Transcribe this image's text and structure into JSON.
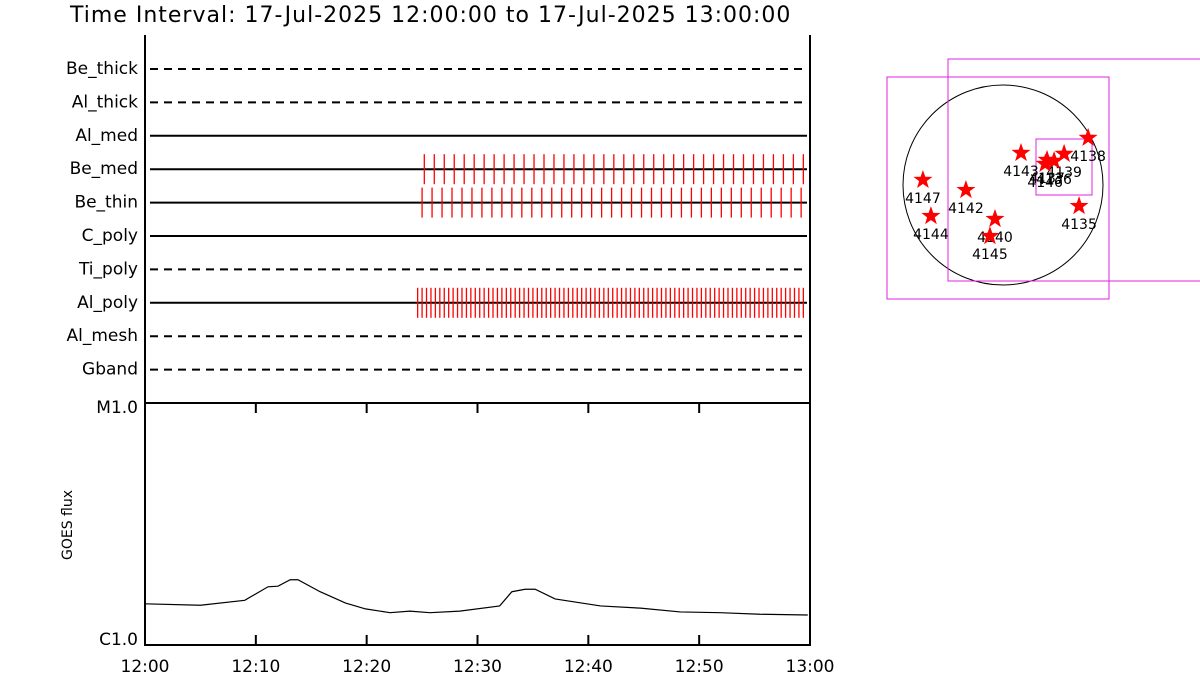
{
  "chart_data": [
    {
      "type": "timeline",
      "title": "Time Interval: 17-Jul-2025 12:00:00 to 17-Jul-2025 13:00:00",
      "categories": [
        "Be_thick",
        "Al_thick",
        "Al_med",
        "Be_med",
        "Be_thin",
        "C_poly",
        "Ti_poly",
        "Al_poly",
        "Al_mesh",
        "Gband"
      ],
      "line_styles": [
        "dashed",
        "dashed",
        "solid",
        "solid",
        "solid",
        "solid",
        "dashed",
        "solid",
        "dashed",
        "dashed"
      ],
      "color": "#ff0000",
      "xlim": [
        0,
        60
      ],
      "observations": [
        [],
        [],
        [],
        [
          25.2,
          26.1,
          27.0,
          27.9,
          28.8,
          29.7,
          30.6,
          31.5,
          32.4,
          33.3,
          34.2,
          35.1,
          36.0,
          36.9,
          37.8,
          38.7,
          39.6,
          40.5,
          41.4,
          42.3,
          43.2,
          44.1,
          45.0,
          45.9,
          46.8,
          47.7,
          48.6,
          49.5,
          50.4,
          51.3,
          52.2,
          53.1,
          54.0,
          54.9,
          55.8,
          56.7,
          57.6,
          58.5,
          59.4
        ],
        [
          25.0,
          25.9,
          26.8,
          27.7,
          28.6,
          29.5,
          30.4,
          31.3,
          32.2,
          33.1,
          34.0,
          34.9,
          35.8,
          36.7,
          37.6,
          38.5,
          39.4,
          40.3,
          41.2,
          42.1,
          43.0,
          43.9,
          44.8,
          45.7,
          46.6,
          47.5,
          48.4,
          49.3,
          50.2,
          51.1,
          52.0,
          52.9,
          53.8,
          54.7,
          55.6,
          56.5,
          57.4,
          58.3,
          59.2
        ],
        [],
        [],
        [
          24.6,
          25.0,
          25.4,
          25.8,
          26.2,
          26.6,
          27.0,
          27.4,
          27.8,
          28.2,
          28.6,
          29.0,
          29.4,
          29.8,
          30.2,
          30.6,
          31.0,
          31.4,
          31.8,
          32.2,
          32.6,
          33.0,
          33.4,
          33.8,
          34.2,
          34.6,
          35.0,
          35.4,
          35.8,
          36.2,
          36.6,
          37.0,
          37.4,
          37.8,
          38.2,
          38.6,
          39.0,
          39.4,
          39.8,
          40.2,
          40.6,
          41.0,
          41.4,
          41.8,
          42.2,
          42.6,
          43.0,
          43.4,
          43.8,
          44.2,
          44.6,
          45.0,
          45.4,
          45.8,
          46.2,
          46.6,
          47.0,
          47.4,
          47.8,
          48.2,
          48.6,
          49.0,
          49.4,
          49.8,
          50.2,
          50.6,
          51.0,
          51.4,
          51.8,
          52.2,
          52.6,
          53.0,
          53.4,
          53.8,
          54.2,
          54.6,
          55.0,
          55.4,
          55.8,
          56.2,
          56.6,
          57.0,
          57.4,
          57.8,
          58.2,
          58.6,
          59.0,
          59.4
        ],
        [],
        []
      ]
    },
    {
      "type": "line",
      "ylabel": "GOES flux",
      "xlim": [
        0,
        60
      ],
      "xticks": [
        {
          "value": 0,
          "label": "12:00"
        },
        {
          "value": 10,
          "label": "12:10"
        },
        {
          "value": 20,
          "label": "12:20"
        },
        {
          "value": 30,
          "label": "12:30"
        },
        {
          "value": 40,
          "label": "12:40"
        },
        {
          "value": 50,
          "label": "12:50"
        },
        {
          "value": 60,
          "label": "13:00"
        }
      ],
      "ylim": [
        1e-06,
        1e-05
      ],
      "yticks": [
        {
          "value": 1e-06,
          "label": "C1.0"
        },
        {
          "value": 1e-05,
          "label": "M1.0"
        }
      ],
      "y_scale": "log",
      "color": "#000000",
      "x": [
        0,
        5.0,
        9.0,
        11.1,
        12.0,
        13.1,
        13.8,
        15.8,
        18.1,
        19.9,
        22.1,
        23.9,
        25.7,
        28.4,
        32.0,
        33.1,
        34.3,
        35.2,
        37.0,
        41.1,
        44.7,
        48.3,
        51.9,
        55.5,
        59.8
      ],
      "values": [
        1.48e-06,
        1.46e-06,
        1.53e-06,
        1.74e-06,
        1.75e-06,
        1.86e-06,
        1.86e-06,
        1.66e-06,
        1.49e-06,
        1.41e-06,
        1.36e-06,
        1.38e-06,
        1.36e-06,
        1.38e-06,
        1.45e-06,
        1.66e-06,
        1.7e-06,
        1.7e-06,
        1.55e-06,
        1.45e-06,
        1.42e-06,
        1.37e-06,
        1.36e-06,
        1.34e-06,
        1.33e-06
      ]
    },
    {
      "type": "map",
      "xlim": [
        -1120,
        1120
      ],
      "ylim": [
        -1120,
        1120
      ],
      "color": "#ff0000",
      "labels": [
        "4147",
        "4144",
        "4142",
        "4140",
        "4145",
        "4143",
        "4137",
        "4139",
        "4136",
        "4146",
        "4138",
        "4135"
      ],
      "x": [
        -760,
        -684,
        -352,
        -76,
        -124,
        171,
        418,
        580,
        485,
        400,
        808,
        722
      ],
      "y": [
        48,
        -295,
        -48,
        -323,
        -485,
        304,
        238,
        295,
        228,
        200,
        447,
        -200
      ]
    }
  ]
}
